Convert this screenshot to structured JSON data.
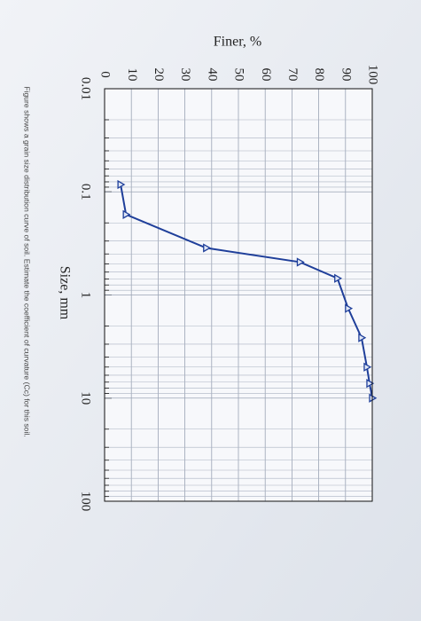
{
  "chart_data": {
    "type": "line",
    "title": "Finer, %",
    "x_label": "Size, mm",
    "x": [
      0.085,
      0.166,
      0.35,
      0.48,
      0.69,
      1.35,
      2.6,
      5.0,
      7.2,
      10
    ],
    "values": [
      6,
      8,
      38,
      73,
      87,
      91,
      96,
      98,
      99,
      100
    ],
    "color": "#1f3f9a",
    "marker": "triangle",
    "xlim": [
      0.01,
      100
    ],
    "xticks": [
      0.01,
      0.1,
      1,
      10,
      100
    ],
    "xscale": "log",
    "ylim": [
      0,
      100
    ],
    "yticks": [
      0,
      10,
      20,
      30,
      40,
      50,
      60,
      70,
      80,
      90,
      100
    ],
    "grid": true
  },
  "caption": "Figure shows a grain size distribution curve of soil. Estimate the coefficient of curvature (Cc) for this soil."
}
